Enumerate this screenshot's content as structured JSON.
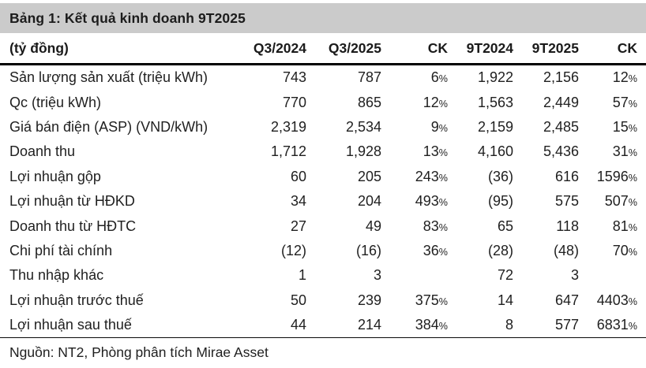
{
  "title": "Bảng 1: Kết quả kinh doanh 9T2025",
  "source": "Nguồn: NT2, Phòng phân tích Mirae Asset",
  "colors": {
    "title_band": "#cbcbcb",
    "text": "#1a1a1a",
    "border": "#000000"
  },
  "chart_data": {
    "type": "table",
    "unit_label": "(tỷ đồng)",
    "columns": [
      "Q3/2024",
      "Q3/2025",
      "CK",
      "9T2024",
      "9T2025",
      "CK"
    ],
    "rows": [
      {
        "label": "Sản lượng sản xuất (triệu kWh)",
        "values": [
          "743",
          "787",
          "6%",
          "1,922",
          "2,156",
          "12%"
        ]
      },
      {
        "label": "Qc (triệu kWh)",
        "values": [
          "770",
          "865",
          "12%",
          "1,563",
          "2,449",
          "57%"
        ]
      },
      {
        "label": "Giá bán điện (ASP) (VND/kWh)",
        "values": [
          "2,319",
          "2,534",
          "9%",
          "2,159",
          "2,485",
          "15%"
        ]
      },
      {
        "label": "Doanh thu",
        "values": [
          "1,712",
          "1,928",
          "13%",
          "4,160",
          "5,436",
          "31%"
        ]
      },
      {
        "label": "Lợi nhuận gộp",
        "values": [
          "60",
          "205",
          "243%",
          "(36)",
          "616",
          "1596%"
        ]
      },
      {
        "label": "Lợi nhuận từ HĐKD",
        "values": [
          "34",
          "204",
          "493%",
          "(95)",
          "575",
          "507%"
        ]
      },
      {
        "label": "Doanh thu từ HĐTC",
        "values": [
          "27",
          "49",
          "83%",
          "65",
          "118",
          "81%"
        ]
      },
      {
        "label": "Chi phí tài chính",
        "values": [
          "(12)",
          "(16)",
          "36%",
          "(28)",
          "(48)",
          "70%"
        ]
      },
      {
        "label": "Thu nhập khác",
        "values": [
          "1",
          "3",
          "",
          "72",
          "3",
          ""
        ]
      },
      {
        "label": "Lợi nhuận trước thuế",
        "values": [
          "50",
          "239",
          "375%",
          "14",
          "647",
          "4403%"
        ]
      },
      {
        "label": "Lợi nhuận sau thuế",
        "values": [
          "44",
          "214",
          "384%",
          "8",
          "577",
          "6831%"
        ]
      }
    ]
  }
}
